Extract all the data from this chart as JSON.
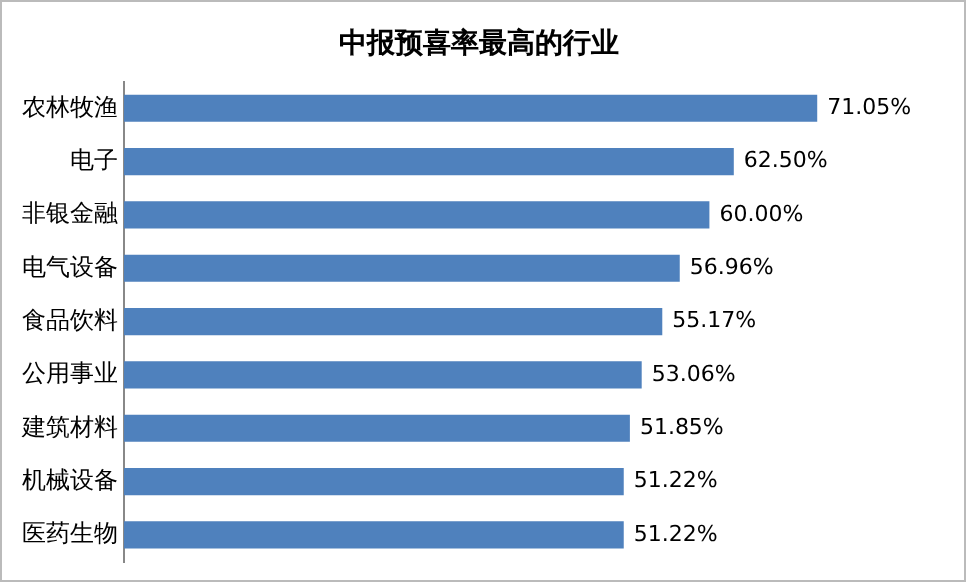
{
  "chart_data": {
    "type": "bar",
    "orientation": "horizontal",
    "title": "中报预喜率最高的行业",
    "categories": [
      "农林牧渔",
      "电子",
      "非银金融",
      "电气设备",
      "食品饮料",
      "公用事业",
      "建筑材料",
      "机械设备",
      "医药生物"
    ],
    "values": [
      71.05,
      62.5,
      60.0,
      56.96,
      55.17,
      53.06,
      51.85,
      51.22,
      51.22
    ],
    "value_labels": [
      "71.05%",
      "62.50%",
      "60.00%",
      "56.96%",
      "55.17%",
      "53.06%",
      "51.85%",
      "51.22%",
      "51.22%"
    ],
    "color": "#4f81bd",
    "legend": false,
    "tick_labels": "y"
  }
}
